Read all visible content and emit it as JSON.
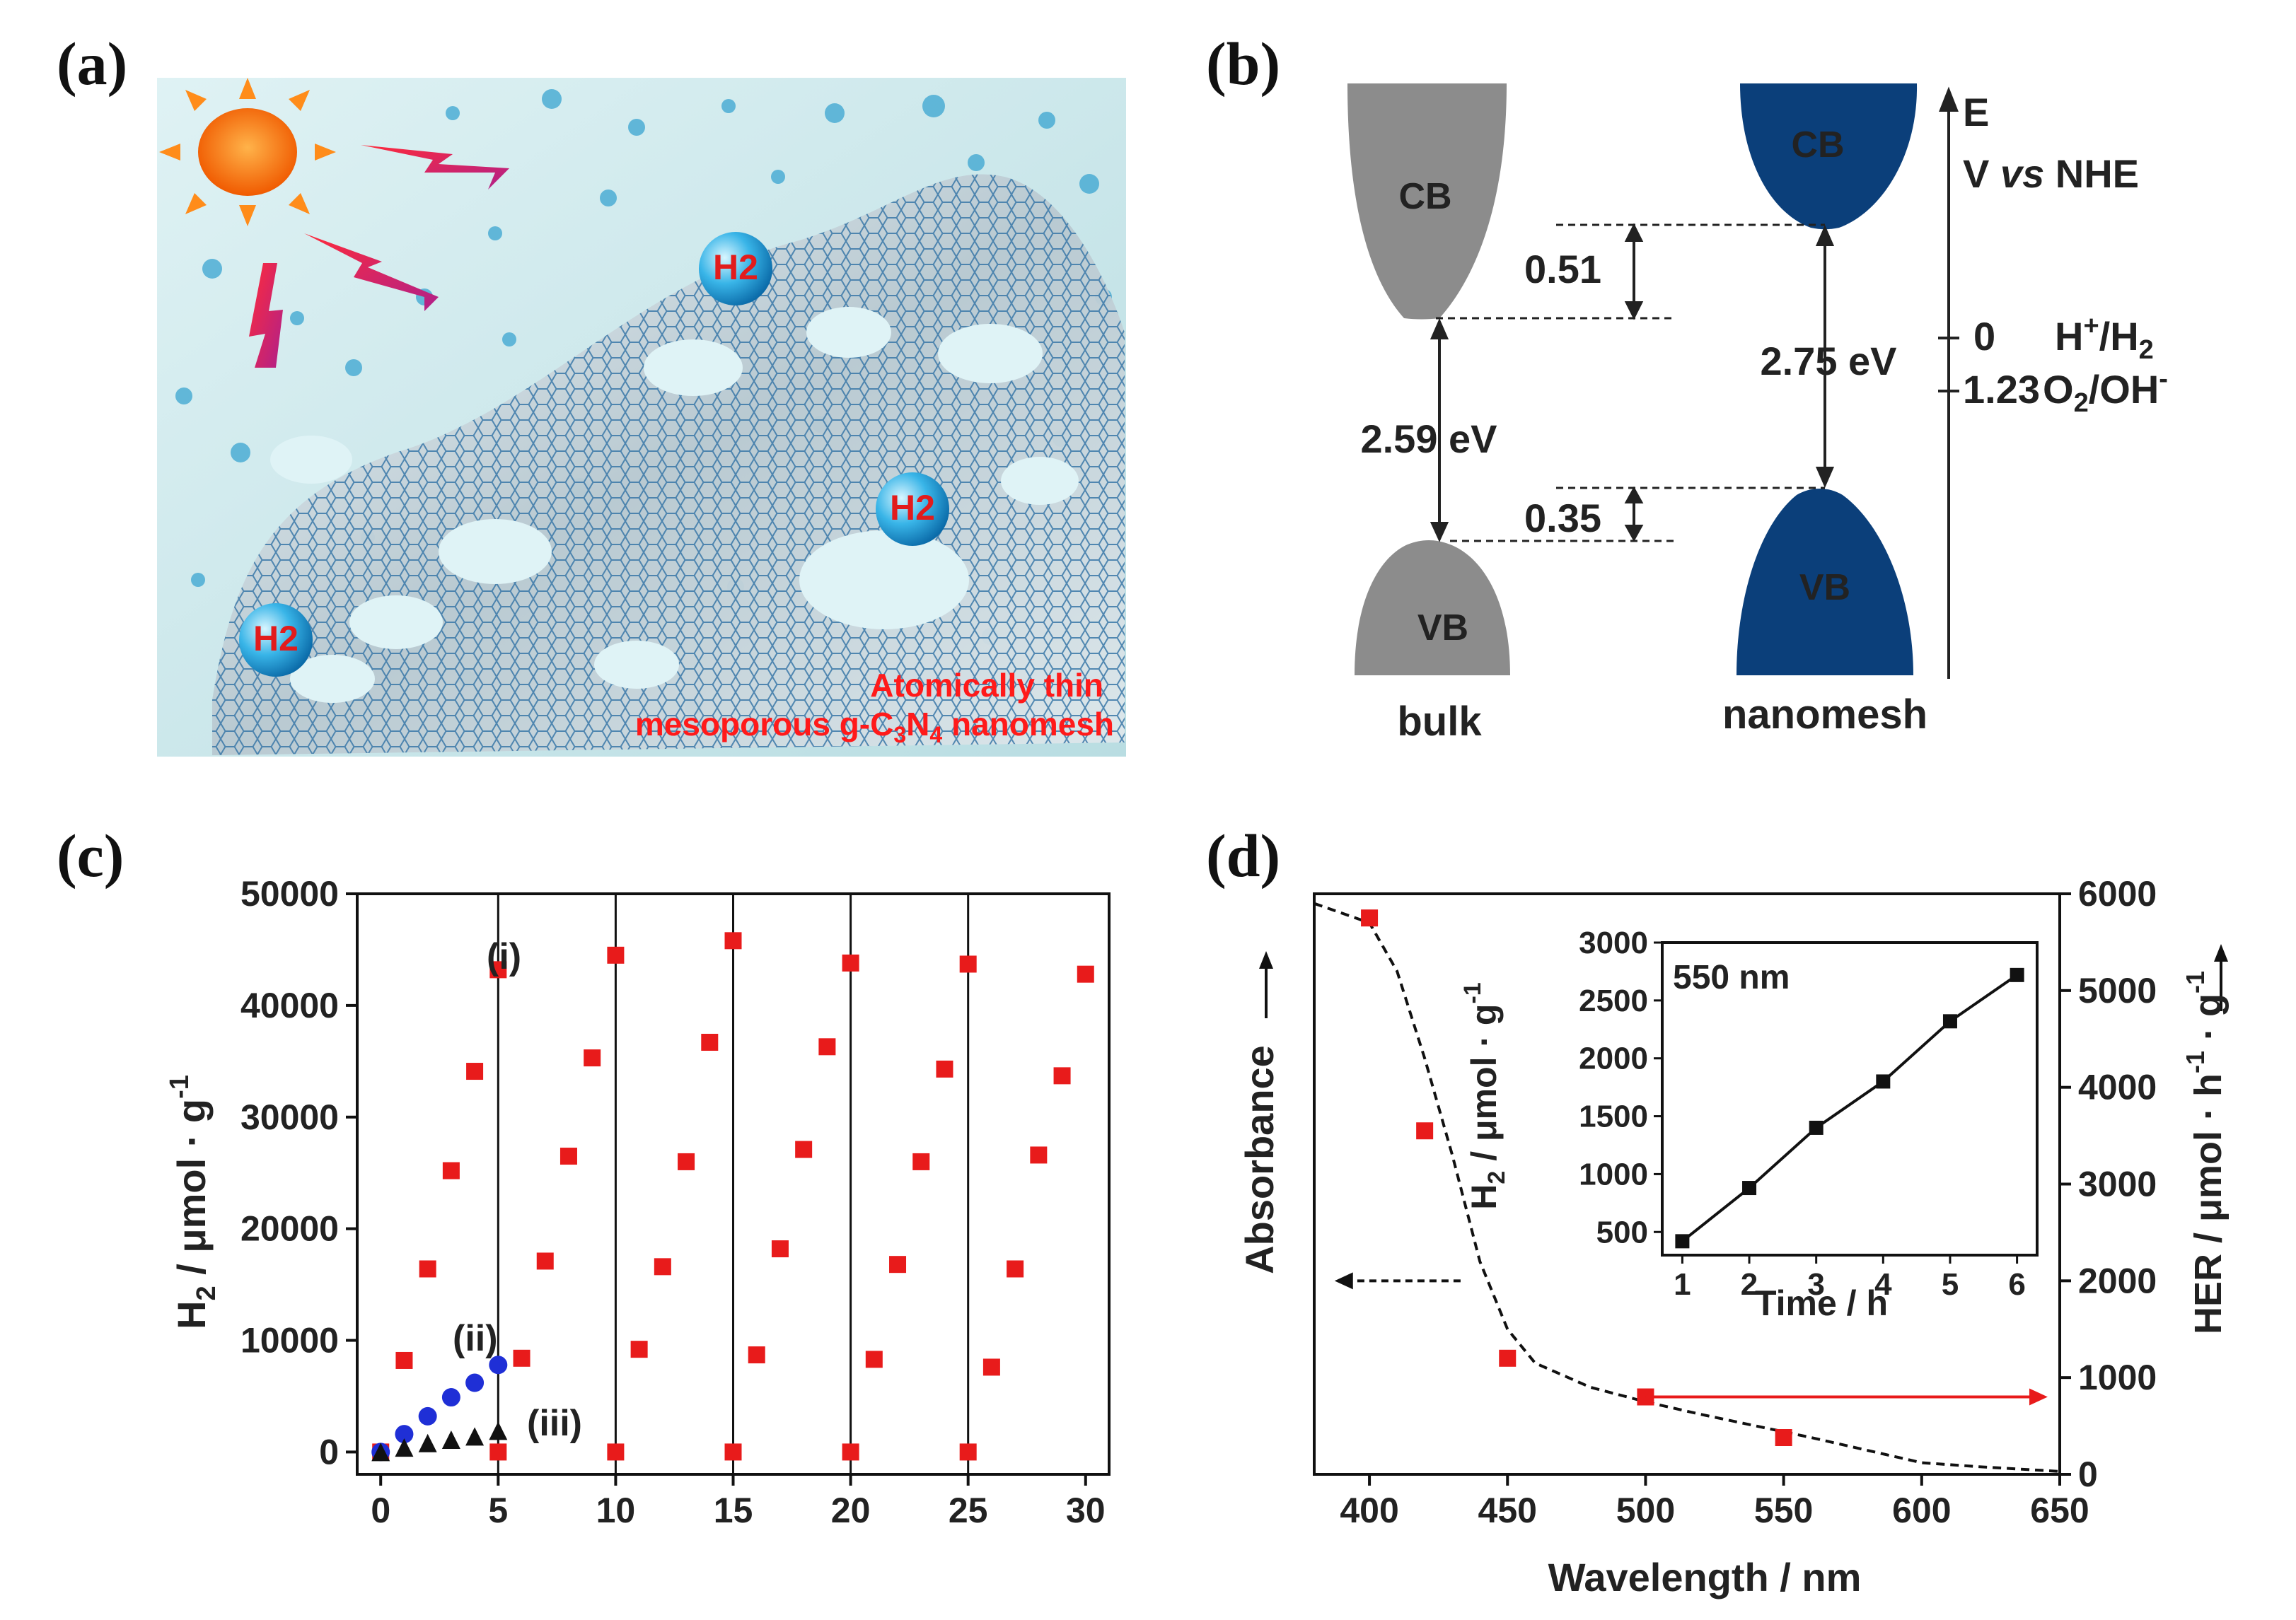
{
  "panel_labels": {
    "a": "(a)",
    "b": "(b)",
    "c": "(c)",
    "d": "(d)"
  },
  "panel_a": {
    "bubble_label": "H2",
    "caption_line1": "Atomically thin",
    "caption_line2_pre": "mesoporous g-C",
    "caption_sub1": "3",
    "caption_mid": "N",
    "caption_sub2": "4",
    "caption_post": " nanomesh",
    "colors": {
      "sun": "#f06a00",
      "bolt": "#e0304a",
      "caption": "#ff1a1a",
      "bubble": "#1aa0d8"
    }
  },
  "panel_b": {
    "cb": "CB",
    "vb": "VB",
    "bulk_label": "bulk",
    "nanomesh_label": "nanomesh",
    "gap_bulk": "2.59 eV",
    "gap_nano": "2.75 eV",
    "shift_cb": "0.51",
    "shift_vb": "0.35",
    "axis_E": "E",
    "axis_V_pre": "V ",
    "axis_V_vs": "vs",
    "axis_V_post": " NHE",
    "level0_value": "0",
    "level0_label_pre": "H",
    "level0_label_sup": "+",
    "level0_label_mid": "/H",
    "level0_label_sub": "2",
    "level1_value": "1.23",
    "level1_label_pre": "O",
    "level1_label_sub": "2",
    "level1_label_mid": "/OH",
    "level1_label_sup": "-",
    "colors": {
      "bulk": "#8c8c8c",
      "nanomesh": "#0b3f7a"
    }
  },
  "chart_data": [
    {
      "id": "c",
      "type": "scatter",
      "title": "",
      "xlabel": "",
      "ylabel_pre": "H",
      "ylabel_sub": "2",
      "ylabel_post": " / μmol · g",
      "ylabel_sup": "-1",
      "xlim": [
        -1,
        31
      ],
      "ylim": [
        -2000,
        50000
      ],
      "xticks": [
        0,
        5,
        10,
        15,
        20,
        25,
        30
      ],
      "yticks": [
        0,
        10000,
        20000,
        30000,
        40000,
        50000
      ],
      "cycle_lines": [
        5,
        10,
        15,
        20,
        25
      ],
      "series": [
        {
          "name": "(i)",
          "color": "#e81b1b",
          "marker": "square",
          "x": [
            0,
            1,
            2,
            3,
            4,
            5,
            5,
            6,
            7,
            8,
            9,
            10,
            10,
            11,
            12,
            13,
            14,
            15,
            15,
            16,
            17,
            18,
            19,
            20,
            20,
            21,
            22,
            23,
            24,
            25,
            25,
            26,
            27,
            28,
            29,
            30
          ],
          "y": [
            0,
            8200,
            16400,
            25200,
            34100,
            43200,
            0,
            8400,
            17100,
            26500,
            35300,
            44500,
            0,
            9200,
            16600,
            26000,
            36700,
            45800,
            0,
            8700,
            18200,
            27100,
            36300,
            43800,
            0,
            8300,
            16800,
            26000,
            34300,
            43700,
            0,
            7600,
            16400,
            26600,
            33700,
            42800
          ]
        },
        {
          "name": "(ii)",
          "color": "#1f2fd6",
          "marker": "circle",
          "x": [
            0,
            1,
            2,
            3,
            4,
            5
          ],
          "y": [
            0,
            1600,
            3200,
            4900,
            6200,
            7800
          ]
        },
        {
          "name": "(iii)",
          "color": "#111111",
          "marker": "triangle",
          "x": [
            0,
            1,
            2,
            3,
            4,
            5
          ],
          "y": [
            0,
            400,
            800,
            1100,
            1400,
            1900
          ]
        }
      ]
    },
    {
      "id": "d",
      "type": "scatter",
      "xlabel": "Wavelength / nm",
      "ylabel_left": "Absorbance",
      "ylabel_right_pre": "HER / μmol · h",
      "ylabel_right_sup1": "-1",
      "ylabel_right_mid": " · g",
      "ylabel_right_sup2": "-1",
      "xlim": [
        380,
        650
      ],
      "ylim": [
        0,
        6000
      ],
      "xticks": [
        400,
        450,
        500,
        550,
        600,
        650
      ],
      "yticks": [
        0,
        1000,
        2000,
        3000,
        4000,
        5000,
        6000
      ],
      "series": [
        {
          "name": "HER",
          "color": "#e81b1b",
          "marker": "square",
          "x": [
            400,
            420,
            450,
            500,
            550
          ],
          "y": [
            5750,
            3550,
            1200,
            800,
            380
          ]
        },
        {
          "name": "Absorbance",
          "color": "#111111",
          "line": "dashed",
          "x": [
            380,
            400,
            410,
            420,
            430,
            440,
            450,
            460,
            480,
            500,
            520,
            540,
            560,
            580,
            600,
            620,
            650
          ],
          "y": [
            5900,
            5700,
            5200,
            4300,
            3300,
            2200,
            1500,
            1150,
            900,
            750,
            620,
            500,
            380,
            250,
            120,
            80,
            30
          ]
        }
      ],
      "inset": {
        "label": "550 nm",
        "xlabel": "Time / h",
        "ylabel_pre": "H",
        "ylabel_sub": "2",
        "ylabel_post": " / μmol · g",
        "ylabel_sup": "-1",
        "xlim": [
          0.7,
          6.3
        ],
        "ylim": [
          300,
          3000
        ],
        "xticks": [
          1,
          2,
          3,
          4,
          5,
          6
        ],
        "yticks": [
          500,
          1000,
          1500,
          2000,
          2500,
          3000
        ],
        "x": [
          1,
          2,
          3,
          4,
          5,
          6
        ],
        "y": [
          420,
          880,
          1400,
          1800,
          2320,
          2720
        ]
      }
    }
  ]
}
